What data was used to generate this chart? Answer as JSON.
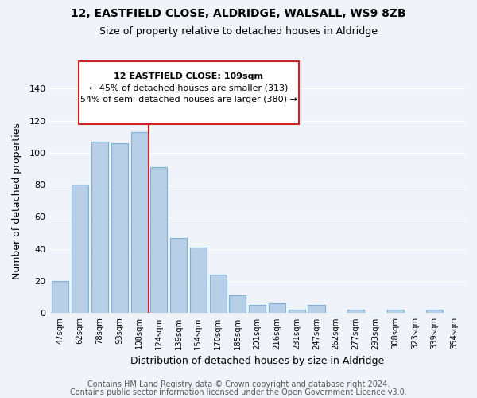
{
  "title1": "12, EASTFIELD CLOSE, ALDRIDGE, WALSALL, WS9 8ZB",
  "title2": "Size of property relative to detached houses in Aldridge",
  "xlabel": "Distribution of detached houses by size in Aldridge",
  "ylabel": "Number of detached properties",
  "bar_labels": [
    "47sqm",
    "62sqm",
    "78sqm",
    "93sqm",
    "108sqm",
    "124sqm",
    "139sqm",
    "154sqm",
    "170sqm",
    "185sqm",
    "201sqm",
    "216sqm",
    "231sqm",
    "247sqm",
    "262sqm",
    "277sqm",
    "293sqm",
    "308sqm",
    "323sqm",
    "339sqm",
    "354sqm"
  ],
  "bar_values": [
    20,
    80,
    107,
    106,
    113,
    91,
    47,
    41,
    24,
    11,
    5,
    6,
    2,
    5,
    0,
    2,
    0,
    2,
    0,
    2,
    0
  ],
  "bar_color": "#b8cfe8",
  "bar_edge_color": "#7bafd4",
  "vline_x": 4.5,
  "vline_color": "#cc2222",
  "annotation_box_edge": "#cc2222",
  "annotation_lines": [
    "12 EASTFIELD CLOSE: 109sqm",
    "← 45% of detached houses are smaller (313)",
    "54% of semi-detached houses are larger (380) →"
  ],
  "ylim": [
    0,
    140
  ],
  "yticks": [
    0,
    20,
    40,
    60,
    80,
    100,
    120,
    140
  ],
  "footer1": "Contains HM Land Registry data © Crown copyright and database right 2024.",
  "footer2": "Contains public sector information licensed under the Open Government Licence v3.0.",
  "background_color": "#f0f4fa",
  "grid_color": "#ffffff",
  "title1_fontsize": 10,
  "title2_fontsize": 9,
  "annotation_fontsize": 8,
  "footer_fontsize": 7
}
